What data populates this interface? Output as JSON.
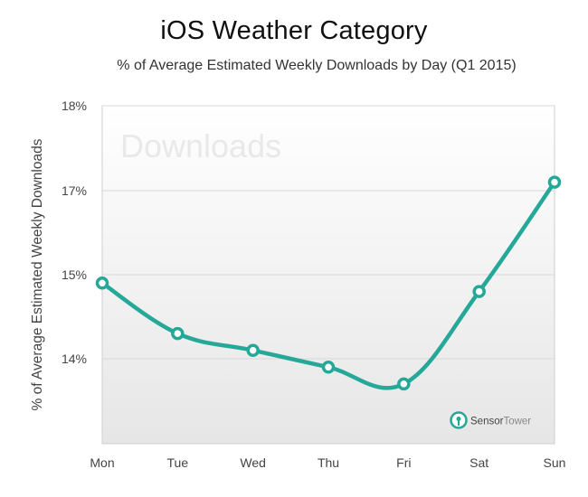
{
  "title": "iOS Weather Category",
  "subtitle": "% of Average Estimated Weekly Downloads by Day (Q1 2015)",
  "watermark": "Downloads",
  "brand": {
    "part1": "Sensor",
    "part2": "Tower"
  },
  "colors": {
    "line": "#25a898",
    "marker_fill": "#ffffff",
    "plot_bg_top": "#ffffff",
    "plot_bg_bottom": "#e6e6e6",
    "brand_accent": "#25a898",
    "brand_text": "#888888"
  },
  "chart_data": {
    "type": "line",
    "title": "iOS Weather Category",
    "subtitle": "% of Average Estimated Weekly Downloads by Day (Q1 2015)",
    "ylabel": "% of Average Estimated Weekly Downloads",
    "xlabel": "",
    "categories": [
      "Mon",
      "Tue",
      "Wed",
      "Thu",
      "Fri",
      "Sat",
      "Sun"
    ],
    "values": [
      14.9,
      14.3,
      14.1,
      13.9,
      13.7,
      14.8,
      17.1
    ],
    "yticks": [
      {
        "value": 14,
        "label": "14%"
      },
      {
        "value": 15,
        "label": "15%"
      },
      {
        "value": 17,
        "label": "17%"
      },
      {
        "value": 18,
        "label": "18%"
      }
    ],
    "grid": true,
    "legend": "none",
    "marker": "hollow-circle"
  }
}
